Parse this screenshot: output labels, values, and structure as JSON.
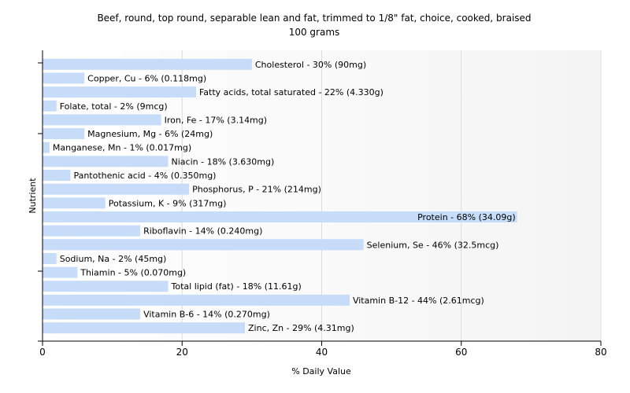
{
  "chart_data": {
    "type": "bar",
    "orientation": "horizontal",
    "title": "Beef, round, top round, separable lean and fat, trimmed to 1/8\" fat, choice, cooked, braised",
    "subtitle": "100 grams",
    "xlabel": "% Daily Value",
    "ylabel": "Nutrient",
    "xlim": [
      0,
      80
    ],
    "xticks": [
      0,
      20,
      40,
      60,
      80
    ],
    "grid": true,
    "bar_color": "#c6dcf8",
    "categories": [
      "Cholesterol",
      "Copper, Cu",
      "Fatty acids, total saturated",
      "Folate, total",
      "Iron, Fe",
      "Magnesium, Mg",
      "Manganese, Mn",
      "Niacin",
      "Pantothenic acid",
      "Phosphorus, P",
      "Potassium, K",
      "Protein",
      "Riboflavin",
      "Selenium, Se",
      "Sodium, Na",
      "Thiamin",
      "Total lipid (fat)",
      "Vitamin B-12",
      "Vitamin B-6",
      "Zinc, Zn"
    ],
    "values": [
      30,
      6,
      22,
      2,
      17,
      6,
      1,
      18,
      4,
      21,
      9,
      68,
      14,
      46,
      2,
      5,
      18,
      44,
      14,
      29
    ],
    "labels": [
      "Cholesterol - 30% (90mg)",
      "Copper, Cu - 6% (0.118mg)",
      "Fatty acids, total saturated - 22% (4.330g)",
      "Folate, total - 2% (9mcg)",
      "Iron, Fe - 17% (3.14mg)",
      "Magnesium, Mg - 6% (24mg)",
      "Manganese, Mn - 1% (0.017mg)",
      "Niacin - 18% (3.630mg)",
      "Pantothenic acid - 4% (0.350mg)",
      "Phosphorus, P - 21% (214mg)",
      "Potassium, K - 9% (317mg)",
      "Protein - 68% (34.09g)",
      "Riboflavin - 14% (0.240mg)",
      "Selenium, Se - 46% (32.5mcg)",
      "Sodium, Na - 2% (45mg)",
      "Thiamin - 5% (0.070mg)",
      "Total lipid (fat) - 18% (11.61g)",
      "Vitamin B-12 - 44% (2.61mcg)",
      "Vitamin B-6 - 14% (0.270mg)",
      "Zinc, Zn - 29% (4.31mg)"
    ]
  }
}
